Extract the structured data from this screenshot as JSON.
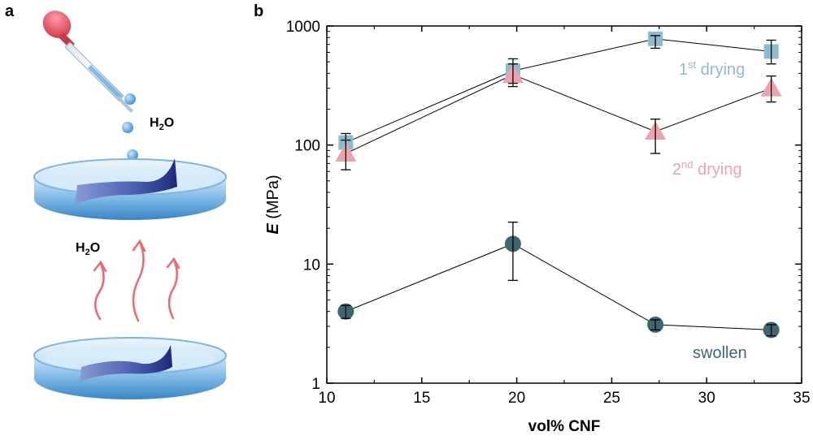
{
  "panels": {
    "a": {
      "label": "a",
      "water_label_top": "H",
      "water_label_top_sub": "2",
      "water_label_top_tail": "O",
      "water_label_mid": "H",
      "water_label_mid_sub": "2",
      "water_label_mid_tail": "O"
    },
    "b": {
      "label": "b"
    }
  },
  "colors": {
    "first_drying": "#8fbccd",
    "second_drying": "#eda3ad",
    "swollen": "#3f6670",
    "axis": "#000000",
    "dish_blue": "#5aa0d8",
    "film_blue": "#2b3c8f",
    "vapor_red": "#f06673",
    "pipette_bulb": "#e8505f"
  },
  "chart_data": {
    "type": "scatter",
    "x": [
      11,
      19.8,
      27.3,
      33.4
    ],
    "xlabel": "vol% CNF",
    "ylabel_bold": "E",
    "ylabel_unit": "(MPa)",
    "xlim": [
      10,
      35
    ],
    "ylim": [
      1,
      1000
    ],
    "yscale": "log",
    "xticks": [
      "10",
      "15",
      "20",
      "25",
      "30",
      "35"
    ],
    "xtick_values": [
      10,
      15,
      20,
      25,
      30,
      35
    ],
    "yticks": [
      "1",
      "10",
      "100",
      "1000"
    ],
    "ytick_values": [
      1,
      10,
      100,
      1000
    ],
    "grid": false,
    "series": [
      {
        "key": "first",
        "name_main": "1",
        "name_sup": "st",
        "name_tail": " drying",
        "marker": "square",
        "values": [
          105,
          420,
          780,
          610
        ],
        "err_low": [
          85,
          330,
          650,
          480
        ],
        "err_high": [
          125,
          530,
          830,
          760
        ]
      },
      {
        "key": "second",
        "name_main": "2",
        "name_sup": "nd",
        "name_tail": " drying",
        "marker": "triangle",
        "values": [
          85,
          390,
          130,
          300
        ],
        "err_low": [
          62,
          310,
          85,
          230
        ],
        "err_high": [
          110,
          480,
          165,
          380
        ]
      },
      {
        "key": "swollen",
        "name_main": "swollen",
        "name_sup": "",
        "name_tail": "",
        "marker": "circle",
        "values": [
          4,
          14.8,
          3.1,
          2.8
        ],
        "err_low": [
          3.5,
          7.3,
          2.8,
          2.5
        ],
        "err_high": [
          4.5,
          22.5,
          3.4,
          3.1
        ]
      }
    ]
  }
}
